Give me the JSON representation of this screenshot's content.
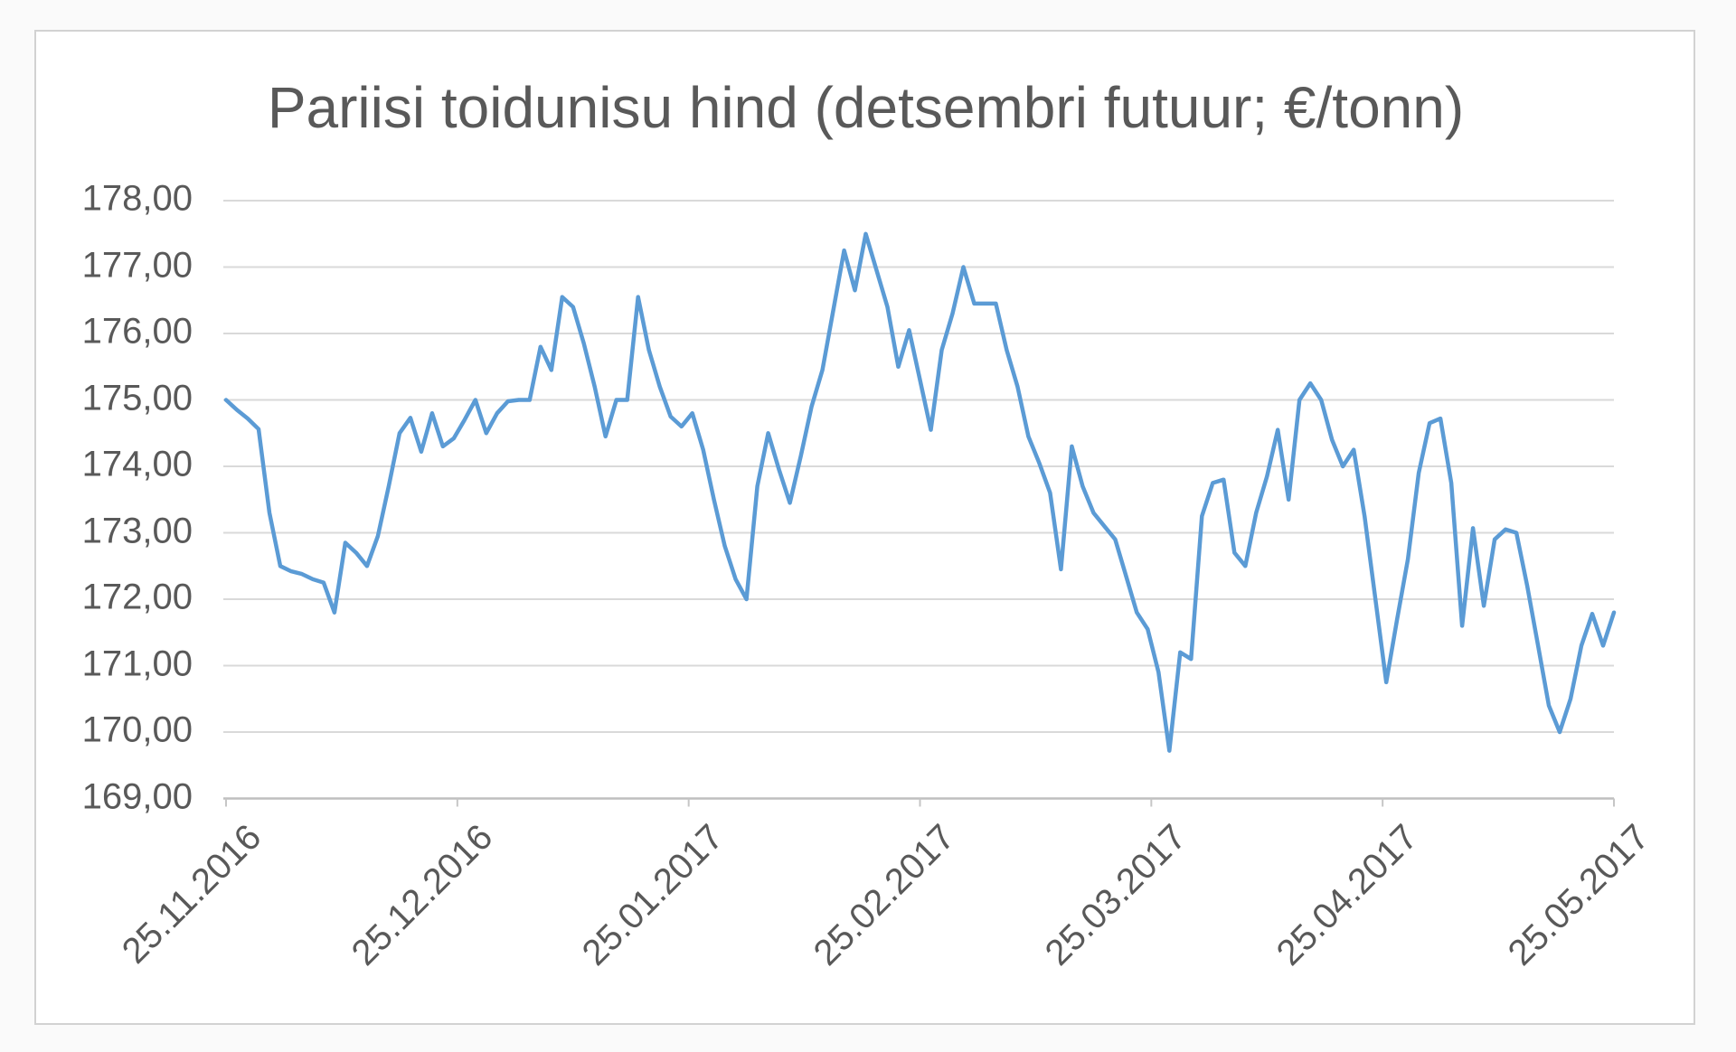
{
  "chart": {
    "background": "#ffffff",
    "page_background": "#fafafa",
    "frame_border_color": "#d2d2d2"
  },
  "chart_data": {
    "type": "line",
    "title": "Pariisi toidunisu hind (detsembri futuur; €/tonn)",
    "xlabel": "",
    "ylabel": "",
    "legend": "none",
    "grid": "horizontal",
    "ylim": [
      169,
      178
    ],
    "y_tick_step": 1,
    "y_tick_labels": [
      "178,00",
      "177,00",
      "176,00",
      "175,00",
      "174,00",
      "173,00",
      "172,00",
      "171,00",
      "170,00",
      "169,00"
    ],
    "x_tick_labels": [
      "25.11.2016",
      "25.12.2016",
      "25.01.2017",
      "25.02.2017",
      "25.03.2017",
      "25.04.2017",
      "25.05.2017"
    ],
    "line_color": "#5B9BD5",
    "gridline_color": "#d9d9d9",
    "axis_line_color": "#bfbfbf",
    "tick_color": "#c6c6c6",
    "text_color": "#595959",
    "series": [
      {
        "name": "Pariisi toidunisu hind (detsembri futuur)",
        "values": [
          175.0,
          174.85,
          174.72,
          174.56,
          173.3,
          172.5,
          172.42,
          172.38,
          172.3,
          172.25,
          171.8,
          172.85,
          172.7,
          172.5,
          172.95,
          173.7,
          174.5,
          174.73,
          174.22,
          174.8,
          174.3,
          174.42,
          174.7,
          175.0,
          174.5,
          174.8,
          174.98,
          175.0,
          175.0,
          175.8,
          175.45,
          176.55,
          176.4,
          175.85,
          175.2,
          174.45,
          175.0,
          175.0,
          176.55,
          175.75,
          175.2,
          174.75,
          174.6,
          174.8,
          174.25,
          173.5,
          172.8,
          172.3,
          172.0,
          173.7,
          174.5,
          173.95,
          173.45,
          174.15,
          174.9,
          175.45,
          176.35,
          177.25,
          176.65,
          177.5,
          176.95,
          176.4,
          175.5,
          176.05,
          175.3,
          174.55,
          175.75,
          176.3,
          177.0,
          176.45,
          176.45,
          176.45,
          175.75,
          175.2,
          174.45,
          174.05,
          173.6,
          172.45,
          174.3,
          173.7,
          173.3,
          173.1,
          172.9,
          172.35,
          171.8,
          171.55,
          170.9,
          169.72,
          171.2,
          171.1,
          173.25,
          173.75,
          173.8,
          172.7,
          172.5,
          173.3,
          173.85,
          174.55,
          173.5,
          175.0,
          175.25,
          175.0,
          174.4,
          174.0,
          174.25,
          173.25,
          172.0,
          170.75,
          171.7,
          172.6,
          173.9,
          174.65,
          174.72,
          173.75,
          171.6,
          173.07,
          171.9,
          172.9,
          173.05,
          173.0,
          172.2,
          171.3,
          170.4,
          170.0,
          170.5,
          171.3,
          171.78,
          171.3,
          171.8
        ]
      }
    ]
  }
}
